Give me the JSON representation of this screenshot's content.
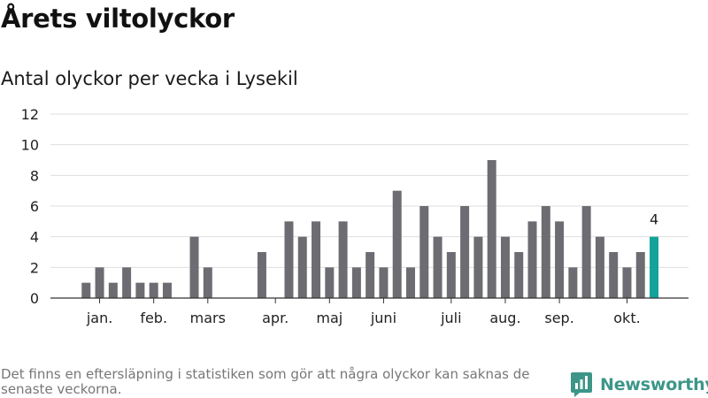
{
  "header": {
    "title": "Årets viltolyckor",
    "subtitle": "Antal olyckor per vecka i Lysekil"
  },
  "footer": {
    "note": "Det finns en eftersläpning i statistiken som gör att några olyckor kan saknas de senaste veckorna.",
    "brand": "Newsworthy"
  },
  "colors": {
    "bar": "#6d6c72",
    "highlight": "#13a39a",
    "brand": "#3d9688",
    "grid": "#dedede",
    "axis": "#333333"
  },
  "chart_data": {
    "type": "bar",
    "title": "Antal olyckor per vecka i Lysekil",
    "xlabel": "",
    "ylabel": "",
    "ylim": [
      0,
      12
    ],
    "yticks": [
      0,
      2,
      4,
      6,
      8,
      10,
      12
    ],
    "grid": true,
    "weeks": [
      1,
      2,
      3,
      4,
      5,
      6,
      7,
      8,
      9,
      10,
      11,
      12,
      13,
      14,
      15,
      16,
      17,
      18,
      19,
      20,
      21,
      22,
      23,
      24,
      25,
      26,
      27,
      28,
      29,
      30,
      31,
      32,
      33,
      34,
      35,
      36,
      37,
      38,
      39,
      40,
      41,
      42,
      43,
      44
    ],
    "values": [
      0,
      1,
      2,
      1,
      2,
      1,
      1,
      1,
      0,
      4,
      2,
      0,
      0,
      0,
      3,
      0,
      5,
      4,
      5,
      2,
      5,
      2,
      3,
      2,
      7,
      2,
      6,
      4,
      3,
      6,
      4,
      9,
      4,
      3,
      5,
      6,
      5,
      2,
      6,
      4,
      3,
      2,
      3,
      4
    ],
    "highlight_last": true,
    "highlight_label": "4",
    "month_labels": [
      {
        "label": "jan.",
        "week": 3
      },
      {
        "label": "feb.",
        "week": 7
      },
      {
        "label": "mars",
        "week": 11
      },
      {
        "label": "apr.",
        "week": 16
      },
      {
        "label": "maj",
        "week": 20
      },
      {
        "label": "juni",
        "week": 24
      },
      {
        "label": "juli",
        "week": 29
      },
      {
        "label": "aug.",
        "week": 33
      },
      {
        "label": "sep.",
        "week": 37
      },
      {
        "label": "okt.",
        "week": 42
      }
    ]
  }
}
